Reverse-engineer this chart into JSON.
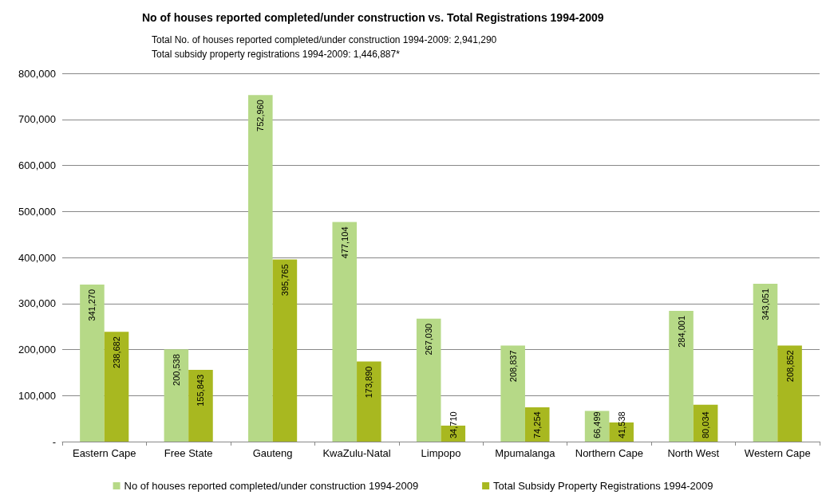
{
  "chart_data": {
    "type": "bar",
    "title": "No of houses reported completed/under construction vs. Total Registrations 1994-2009",
    "subtitle": "Total No. of houses reported completed/under construction 1994-2009: 2,941,290",
    "annotations": [
      "Total subsidy property registrations 1994-2009: 1,446,887*"
    ],
    "categories": [
      "Eastern Cape",
      "Free State",
      "Gauteng",
      "KwaZulu-Natal",
      "Limpopo",
      "Mpumalanga",
      "Northern Cape",
      "North West",
      "Western Cape"
    ],
    "series": [
      {
        "name": "No of houses reported completed/under construction 1994-2009",
        "color": "#b6d987",
        "values": [
          341270,
          200538,
          752960,
          477104,
          267030,
          208837,
          66499,
          284001,
          343051
        ],
        "value_labels": [
          "341,270",
          "200,538",
          "752,960",
          "477,104",
          "267,030",
          "208,837",
          "66,499",
          "284,001",
          "343,051"
        ]
      },
      {
        "name": "Total Subsidy Property Registrations 1994-2009",
        "color": "#a8b820",
        "values": [
          238682,
          155843,
          395765,
          173890,
          34710,
          74254,
          41538,
          80034,
          208852
        ],
        "value_labels": [
          "238,682",
          "155,843",
          "395,765",
          "173,890",
          "34,710",
          "74,254",
          "41,538",
          "80,034",
          "208,852"
        ]
      }
    ],
    "ylim": [
      0,
      800000
    ],
    "yticks": [
      {
        "value": 0,
        "label": "-"
      },
      {
        "value": 100000,
        "label": "100,000"
      },
      {
        "value": 200000,
        "label": "200,000"
      },
      {
        "value": 300000,
        "label": "300,000"
      },
      {
        "value": 400000,
        "label": "400,000"
      },
      {
        "value": 500000,
        "label": "500,000"
      },
      {
        "value": 600000,
        "label": "600,000"
      },
      {
        "value": 700000,
        "label": "700,000"
      },
      {
        "value": 800000,
        "label": "800,000"
      }
    ],
    "grid": "y",
    "legend": "bottom"
  }
}
